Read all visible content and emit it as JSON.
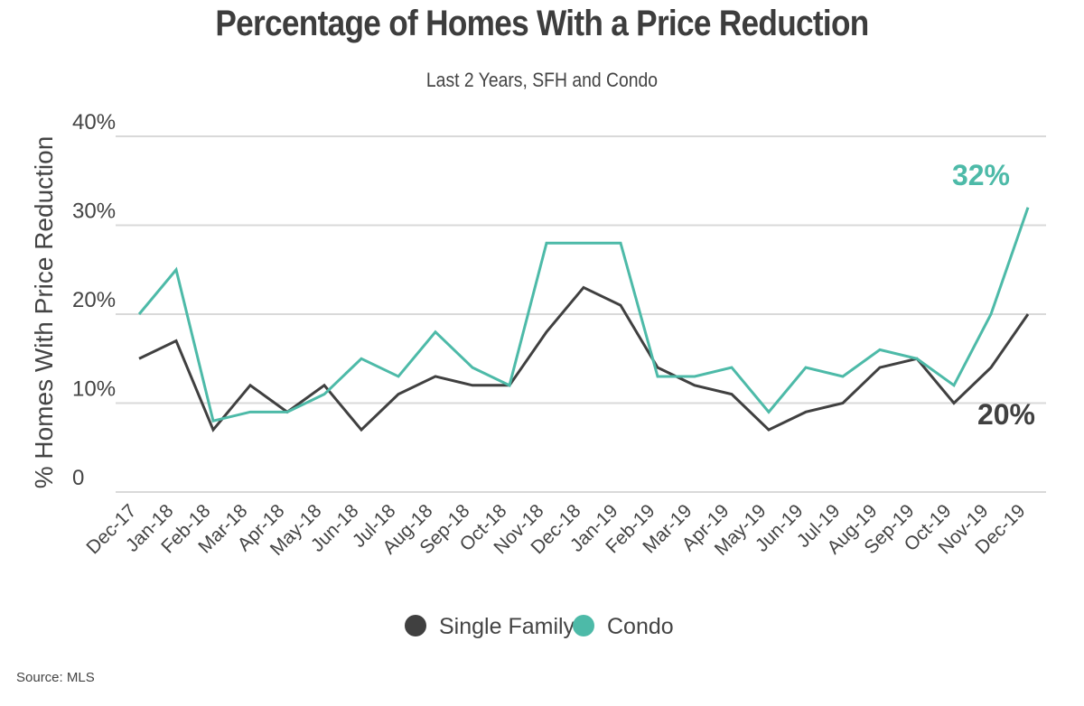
{
  "chart_data": {
    "type": "line",
    "title": "Percentage of Homes With a Price Reduction",
    "subtitle": "Last 2 Years, SFH and Condo",
    "xlabel": "",
    "ylabel": "% Homes With Price Reduction",
    "ylim": [
      0,
      40
    ],
    "yticks": [
      {
        "value": 0,
        "label": "0"
      },
      {
        "value": 10,
        "label": "10%"
      },
      {
        "value": 20,
        "label": "20%"
      },
      {
        "value": 30,
        "label": "30%"
      },
      {
        "value": 40,
        "label": "40%"
      }
    ],
    "grid": true,
    "legend_position": "bottom-center",
    "categories": [
      "Dec-17",
      "Jan-18",
      "Feb-18",
      "Mar-18",
      "Apr-18",
      "May-18",
      "Jun-18",
      "Jul-18",
      "Aug-18",
      "Sep-18",
      "Oct-18",
      "Nov-18",
      "Dec-18",
      "Jan-19",
      "Feb-19",
      "Mar-19",
      "Apr-19",
      "May-19",
      "Jun-19",
      "Jul-19",
      "Aug-19",
      "Sep-19",
      "Oct-19",
      "Nov-19",
      "Dec-19"
    ],
    "series": [
      {
        "name": "Single Family",
        "color": "#404040",
        "values": [
          15,
          17,
          7,
          12,
          9,
          12,
          7,
          11,
          13,
          12,
          12,
          18,
          23,
          21,
          14,
          12,
          11,
          7,
          9,
          10,
          14,
          15,
          10,
          14,
          20
        ],
        "end_label": "20%"
      },
      {
        "name": "Condo",
        "color": "#4dbaa8",
        "values": [
          20,
          25,
          8,
          9,
          9,
          11,
          15,
          13,
          18,
          14,
          12,
          28,
          28,
          28,
          13,
          13,
          14,
          9,
          14,
          13,
          16,
          15,
          12,
          20,
          32
        ],
        "end_label": "32%"
      }
    ],
    "source": "Source:  MLS"
  }
}
